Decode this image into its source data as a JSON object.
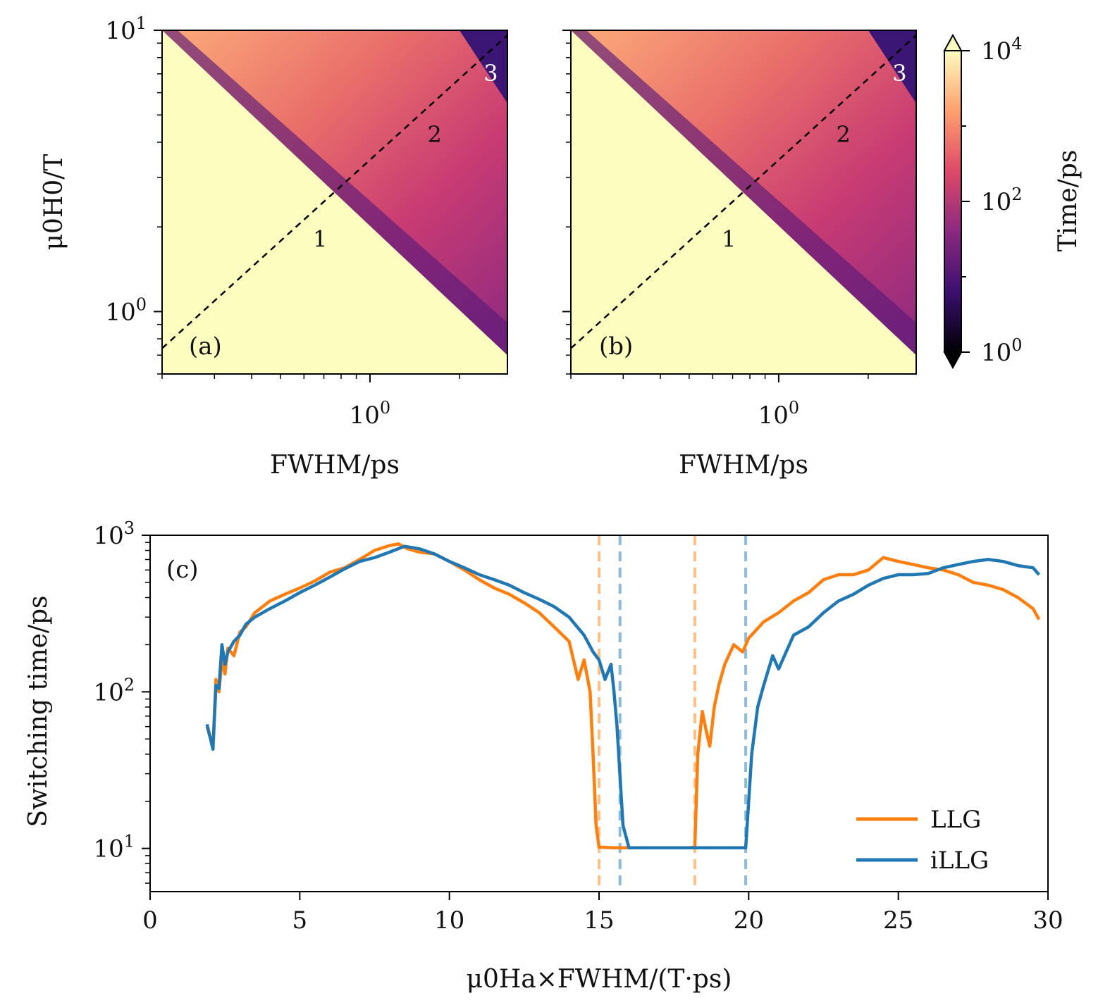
{
  "chart_data": [
    {
      "panel": "(a)",
      "type": "heatmap",
      "xlabel": "FWHM/ps",
      "ylabel": "μ0H0/T",
      "xscale": "log",
      "yscale": "log",
      "xlim": [
        0.2,
        2.9
      ],
      "ylim": [
        0.6,
        10
      ],
      "x_ticks": [
        {
          "value": 1,
          "base": "10",
          "exp": "0"
        }
      ],
      "y_ticks": [
        {
          "value": 1,
          "base": "10",
          "exp": "0"
        },
        {
          "value": 10,
          "base": "10",
          "exp": "1"
        }
      ],
      "region_labels": [
        {
          "text": "1",
          "fwhm": 0.68,
          "field": 1.7
        },
        {
          "text": "2",
          "fwhm": 1.65,
          "field": 4.0
        },
        {
          "text": "3",
          "fwhm": 2.55,
          "field": 6.6
        }
      ],
      "guide_line": {
        "style": "dashed",
        "from": [
          0.2,
          0.74
        ],
        "to": [
          2.9,
          9.6
        ]
      },
      "switching_boundary": {
        "from": [
          0.2,
          10
        ],
        "to": [
          2.9,
          0.7
        ]
      },
      "fast_band": {
        "from": [
          2.0,
          10
        ],
        "to": [
          2.9,
          5.5
        ]
      },
      "background_value": 10000
    },
    {
      "panel": "(b)",
      "type": "heatmap",
      "xlabel": "FWHM/ps",
      "ylabel": "",
      "xscale": "log",
      "yscale": "log",
      "xlim": [
        0.2,
        2.9
      ],
      "ylim": [
        0.6,
        10
      ],
      "x_ticks": [
        {
          "value": 1,
          "base": "10",
          "exp": "0"
        }
      ],
      "y_ticks": [],
      "region_labels": [
        {
          "text": "1",
          "fwhm": 0.68,
          "field": 1.7
        },
        {
          "text": "2",
          "fwhm": 1.65,
          "field": 4.0
        },
        {
          "text": "3",
          "fwhm": 2.55,
          "field": 6.6
        }
      ],
      "guide_line": {
        "style": "dashed",
        "from": [
          0.2,
          0.74
        ],
        "to": [
          2.9,
          9.6
        ]
      },
      "switching_boundary": {
        "from": [
          0.2,
          10
        ],
        "to": [
          2.9,
          0.7
        ]
      },
      "fast_band": {
        "from": [
          2.0,
          10
        ],
        "to": [
          2.9,
          5.5
        ]
      },
      "background_value": 10000
    },
    {
      "type": "colorbar",
      "label": "Time/ps",
      "scale": "log",
      "range": [
        1,
        10000
      ],
      "extend": "both",
      "colormap": [
        "#000004",
        "#3b0f70",
        "#8c2981",
        "#de4968",
        "#fe9f6d",
        "#fcfdbf"
      ],
      "ticks": [
        {
          "value": 1,
          "base": "10",
          "exp": "0"
        },
        {
          "value": 100,
          "base": "10",
          "exp": "2"
        },
        {
          "value": 10000,
          "base": "10",
          "exp": "4"
        }
      ]
    },
    {
      "panel": "(c)",
      "type": "line",
      "xlabel": "μ0Ha×FWHM/(T·ps)",
      "ylabel": "Switching time/ps",
      "xlim": [
        0,
        30
      ],
      "ylim": [
        5.3,
        1000
      ],
      "yscale": "log",
      "x_ticks": [
        "0",
        "5",
        "10",
        "15",
        "20",
        "25",
        "30"
      ],
      "y_ticks": [
        {
          "value": 10,
          "base": "10",
          "exp": "1"
        },
        {
          "value": 100,
          "base": "10",
          "exp": "2"
        },
        {
          "value": 1000,
          "base": "10",
          "exp": "3"
        }
      ],
      "legend_position": "lower-right",
      "series": [
        {
          "name": "LLG",
          "color": "#ff7f0e",
          "x": [
            1.9,
            2.1,
            2.2,
            2.3,
            2.4,
            2.5,
            2.6,
            2.8,
            3.0,
            3.2,
            3.5,
            4.0,
            4.5,
            5.0,
            5.5,
            6.0,
            6.5,
            7.0,
            7.5,
            8.0,
            8.3,
            8.6,
            9.0,
            9.5,
            10.0,
            10.5,
            11.0,
            11.5,
            12.0,
            12.5,
            13.0,
            13.5,
            14.0,
            14.3,
            14.5,
            14.7,
            14.8,
            14.9,
            15.0,
            15.5,
            16.0,
            17.0,
            18.0,
            18.2,
            18.3,
            18.45,
            18.55,
            18.7,
            18.85,
            19.0,
            19.2,
            19.5,
            19.8,
            20.0,
            20.5,
            21.0,
            21.5,
            22.0,
            22.5,
            23.0,
            23.5,
            24.0,
            24.5,
            25.0,
            25.5,
            26.0,
            26.5,
            27.0,
            27.5,
            28.0,
            28.5,
            29.0,
            29.5,
            29.7
          ],
          "y": [
            60,
            45,
            120,
            100,
            160,
            130,
            190,
            170,
            240,
            260,
            320,
            380,
            420,
            460,
            510,
            580,
            620,
            700,
            800,
            860,
            880,
            820,
            780,
            760,
            680,
            600,
            520,
            460,
            420,
            370,
            320,
            260,
            210,
            120,
            160,
            100,
            40,
            14,
            10.2,
            10.1,
            10.1,
            10.1,
            10.1,
            10.2,
            40,
            75,
            60,
            45,
            80,
            110,
            150,
            200,
            180,
            220,
            280,
            320,
            380,
            430,
            520,
            560,
            560,
            600,
            720,
            680,
            650,
            620,
            600,
            560,
            500,
            480,
            450,
            400,
            340,
            290
          ]
        },
        {
          "name": "iLLG",
          "color": "#1f77b4",
          "x": [
            1.9,
            2.1,
            2.2,
            2.3,
            2.4,
            2.5,
            2.6,
            2.8,
            3.0,
            3.2,
            3.5,
            4.0,
            4.5,
            5.0,
            5.5,
            6.0,
            6.5,
            7.0,
            7.5,
            8.0,
            8.5,
            9.0,
            9.5,
            10.0,
            10.5,
            11.0,
            11.5,
            12.0,
            12.5,
            13.0,
            13.5,
            14.0,
            14.5,
            14.8,
            15.0,
            15.2,
            15.4,
            15.5,
            15.6,
            15.8,
            16.0,
            17.0,
            18.0,
            19.0,
            19.9,
            20.1,
            20.3,
            20.5,
            20.8,
            21.0,
            21.5,
            22.0,
            22.5,
            23.0,
            23.5,
            24.0,
            24.5,
            25.0,
            25.5,
            26.0,
            26.5,
            27.0,
            27.5,
            28.0,
            28.5,
            29.0,
            29.5,
            29.7
          ],
          "y": [
            62,
            43,
            110,
            105,
            200,
            150,
            180,
            210,
            230,
            270,
            300,
            340,
            380,
            430,
            480,
            540,
            610,
            680,
            720,
            780,
            850,
            820,
            760,
            680,
            620,
            560,
            520,
            480,
            430,
            390,
            350,
            300,
            230,
            180,
            160,
            120,
            150,
            100,
            60,
            14,
            10.1,
            10.1,
            10.1,
            10.1,
            10.1,
            40,
            80,
            110,
            170,
            140,
            230,
            260,
            320,
            380,
            420,
            480,
            530,
            560,
            560,
            570,
            620,
            650,
            680,
            700,
            680,
            640,
            620,
            560
          ]
        }
      ],
      "reference_lines": [
        {
          "x": 15.0,
          "color": "#ff7f0e",
          "style": "dashed"
        },
        {
          "x": 15.7,
          "color": "#1f77b4",
          "style": "dashed"
        },
        {
          "x": 18.2,
          "color": "#ff7f0e",
          "style": "dashed"
        },
        {
          "x": 19.9,
          "color": "#1f77b4",
          "style": "dashed"
        }
      ]
    }
  ]
}
